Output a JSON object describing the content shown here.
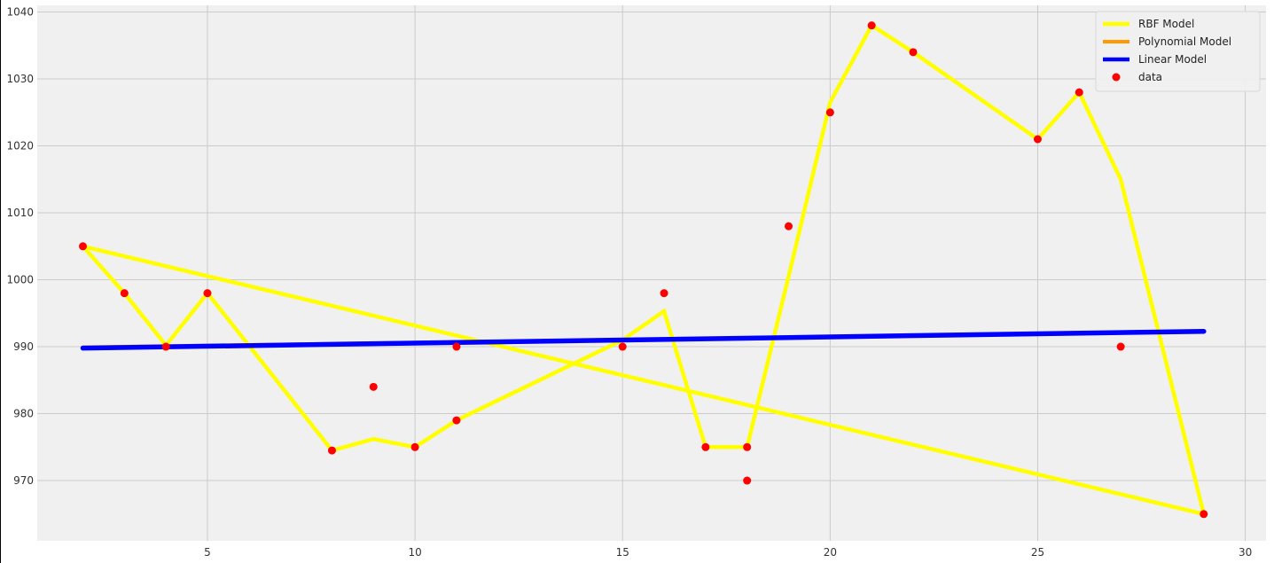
{
  "chart_data": {
    "type": "line",
    "title": "",
    "xlabel": "",
    "ylabel": "",
    "xlim": [
      0.9,
      30.5
    ],
    "ylim": [
      961,
      1041
    ],
    "xticks": [
      5,
      10,
      15,
      20,
      25,
      30
    ],
    "yticks": [
      970,
      980,
      990,
      1000,
      1010,
      1020,
      1030,
      1040
    ],
    "grid": true,
    "legend_position": "top-right",
    "series": [
      {
        "name": "RBF Model",
        "kind": "line",
        "color": "#ffff00",
        "x": [
          2,
          3,
          4,
          5,
          8,
          9,
          10,
          11,
          15,
          16,
          17,
          18,
          19,
          20,
          21,
          22,
          25,
          26,
          27,
          29,
          2
        ],
        "y": [
          1005,
          998,
          990.2,
          998,
          974.5,
          976.2,
          975,
          979,
          991,
          995.3,
          975,
          975,
          1000.5,
          1026.5,
          1038,
          1034,
          1021,
          1028,
          1015,
          965,
          1005
        ]
      },
      {
        "name": "Polynomial Model",
        "kind": "line",
        "color": "#ff9900",
        "x": [
          2,
          29
        ],
        "y": [
          990,
          992.3
        ]
      },
      {
        "name": "Linear Model",
        "kind": "line",
        "color": "#0000ff",
        "x": [
          2,
          29
        ],
        "y": [
          989.8,
          992.3
        ]
      },
      {
        "name": "data",
        "kind": "scatter",
        "color": "#ff0000",
        "x": [
          2,
          3,
          4,
          5,
          8,
          9,
          10,
          11,
          11,
          15,
          16,
          17,
          18,
          18,
          19,
          20,
          21,
          22,
          25,
          26,
          27,
          29
        ],
        "y": [
          1005,
          998,
          990,
          998,
          974.5,
          984,
          975,
          979,
          990,
          990,
          998,
          975,
          975,
          970,
          1008,
          1025,
          1038,
          1034,
          1021,
          1028,
          990,
          965
        ]
      }
    ]
  }
}
